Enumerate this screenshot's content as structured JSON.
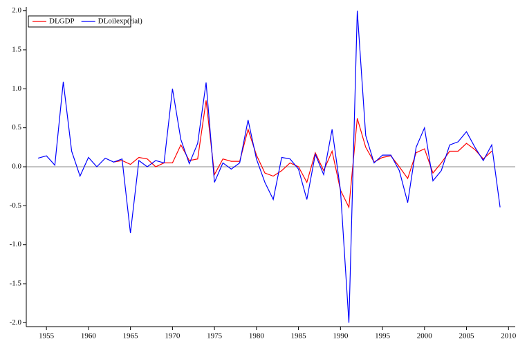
{
  "chart_data": {
    "type": "line",
    "x": [
      1954,
      1955,
      1956,
      1957,
      1958,
      1959,
      1960,
      1961,
      1962,
      1963,
      1964,
      1965,
      1966,
      1967,
      1968,
      1969,
      1970,
      1971,
      1972,
      1973,
      1974,
      1975,
      1976,
      1977,
      1978,
      1979,
      1980,
      1981,
      1982,
      1983,
      1984,
      1985,
      1986,
      1987,
      1988,
      1989,
      1990,
      1991,
      1992,
      1993,
      1994,
      1995,
      1996,
      1997,
      1998,
      1999,
      2000,
      2001,
      2002,
      2003,
      2004,
      2005,
      2006,
      2007,
      2008,
      2009
    ],
    "series": [
      {
        "name": "DLGDP",
        "color": "#ff0000",
        "values": [
          null,
          null,
          null,
          null,
          null,
          null,
          null,
          null,
          null,
          0.06,
          0.08,
          0.03,
          0.12,
          0.1,
          0.0,
          0.05,
          0.05,
          0.28,
          0.08,
          0.1,
          0.85,
          -0.1,
          0.1,
          0.07,
          0.07,
          0.48,
          0.15,
          -0.08,
          -0.12,
          -0.05,
          0.05,
          0.0,
          -0.2,
          0.18,
          -0.05,
          0.2,
          -0.3,
          -0.52,
          0.62,
          0.25,
          0.06,
          0.12,
          0.14,
          0.0,
          -0.15,
          0.18,
          0.23,
          -0.08,
          0.05,
          0.2,
          0.2,
          0.3,
          0.22,
          0.1,
          0.2,
          null
        ]
      },
      {
        "name": "DLoilexp(rial)",
        "color": "#0000ff",
        "values": [
          0.11,
          0.14,
          0.02,
          1.09,
          0.2,
          -0.12,
          0.12,
          0.0,
          0.11,
          0.06,
          0.1,
          -0.85,
          0.08,
          0.0,
          0.08,
          0.05,
          1.0,
          0.35,
          0.04,
          0.3,
          1.08,
          -0.2,
          0.05,
          -0.03,
          0.05,
          0.6,
          0.1,
          -0.2,
          -0.42,
          0.12,
          0.1,
          -0.03,
          -0.42,
          0.16,
          -0.1,
          0.48,
          -0.3,
          -2.0,
          2.0,
          0.4,
          0.05,
          0.15,
          0.15,
          -0.05,
          -0.46,
          0.25,
          0.5,
          -0.18,
          -0.05,
          0.28,
          0.32,
          0.45,
          0.25,
          0.08,
          0.28,
          -0.52
        ]
      }
    ],
    "xlim": [
      1952.6,
      2010.8
    ],
    "xticks": [
      1955,
      1960,
      1965,
      1970,
      1975,
      1980,
      1985,
      1990,
      1995,
      2000,
      2005,
      2010
    ],
    "ylim": [
      -2.05,
      2.05
    ],
    "yticks": [
      {
        "value": -2,
        "label": "-2.0"
      },
      -1.5,
      {
        "value": -1,
        "label": "-1.0"
      },
      -0.5,
      {
        "value": 0,
        "label": "0.0"
      },
      0.5,
      {
        "value": 1,
        "label": "1.0"
      },
      1.5,
      {
        "value": 2,
        "label": "2.0"
      }
    ],
    "legend": "top-left"
  }
}
